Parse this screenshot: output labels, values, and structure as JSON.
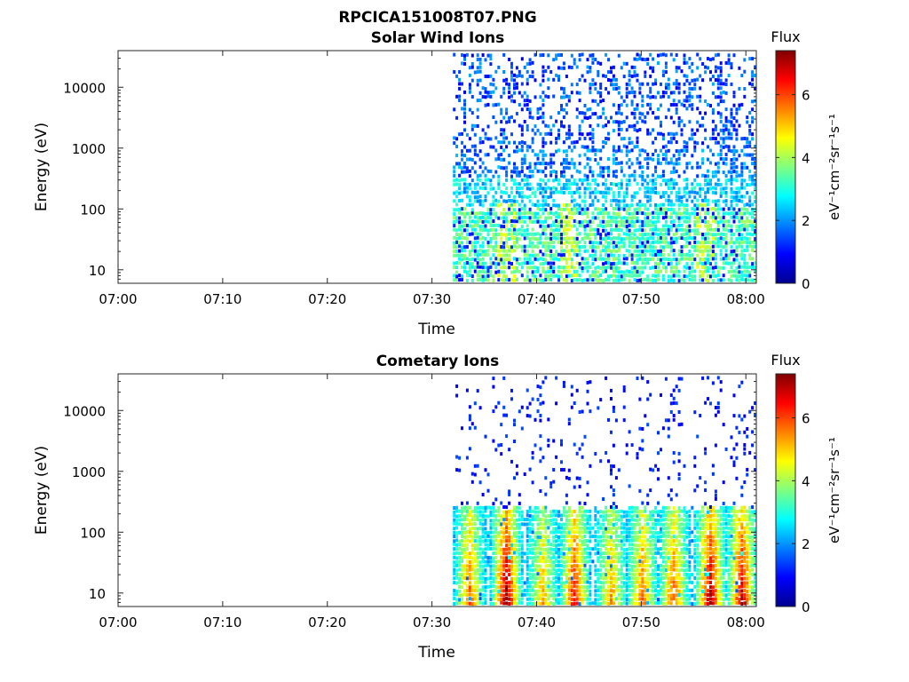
{
  "figure": {
    "title": "RPCICA151008T07.PNG"
  },
  "colorbar": {
    "title": "Flux",
    "label": "eV⁻¹cm⁻²sr⁻¹s⁻¹",
    "range": [
      0,
      7.4
    ],
    "ticks": [
      "0",
      "2",
      "4",
      "6"
    ],
    "colormap": "jet"
  },
  "chart_data": [
    {
      "type": "heatmap",
      "title": "Solar Wind Ions",
      "xlabel": "Time",
      "ylabel": "Energy (eV)",
      "x_ticks": [
        "07:00",
        "07:10",
        "07:20",
        "07:30",
        "07:40",
        "07:50",
        "08:00"
      ],
      "x_range": [
        "07:00",
        "08:01"
      ],
      "y_scale": "log",
      "y_ticks": [
        "10",
        "100",
        "1000",
        "10000"
      ],
      "y_range": [
        6,
        40000
      ],
      "data_start": "07:32",
      "z_range": [
        0,
        7.4
      ],
      "description_of_levels": {
        "above_1000_eV": 1.5,
        "300_to_1000_eV": 2.0,
        "100_to_300_eV": 2.5,
        "below_100_eV": 3.3
      },
      "bright_columns": [
        "07:37",
        "07:43",
        "07:56"
      ],
      "bright_column_value": 4.3
    },
    {
      "type": "heatmap",
      "title": "Cometary Ions",
      "xlabel": "Time",
      "ylabel": "Energy (eV)",
      "x_ticks": [
        "07:00",
        "07:10",
        "07:20",
        "07:30",
        "07:40",
        "07:50",
        "08:00"
      ],
      "x_range": [
        "07:00",
        "08:01"
      ],
      "y_scale": "log",
      "y_ticks": [
        "10",
        "100",
        "1000",
        "10000"
      ],
      "y_range": [
        6,
        40000
      ],
      "data_start": "07:32",
      "z_range": [
        0,
        7.4
      ],
      "bursts": [
        {
          "time": "07:33.5",
          "peak": 5.5
        },
        {
          "time": "07:37",
          "peak": 7.0
        },
        {
          "time": "07:40.5",
          "peak": 5.0
        },
        {
          "time": "07:43.5",
          "peak": 6.2
        },
        {
          "time": "07:47",
          "peak": 5.2
        },
        {
          "time": "07:50",
          "peak": 5.5
        },
        {
          "time": "07:53",
          "peak": 5.6
        },
        {
          "time": "07:56.5",
          "peak": 6.8
        },
        {
          "time": "07:59.5",
          "peak": 6.5
        }
      ]
    }
  ]
}
